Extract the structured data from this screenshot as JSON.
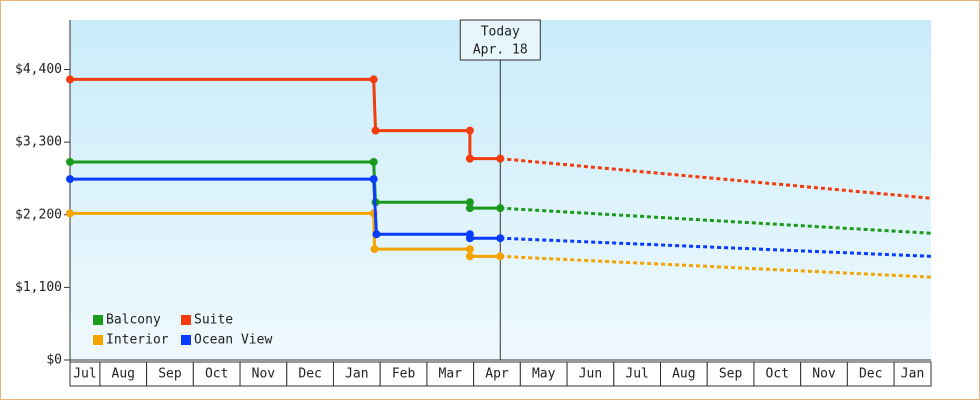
{
  "chart_data": {
    "type": "step-line",
    "xlim": [
      0.36,
      18.79
    ],
    "ylim": [
      0,
      5150
    ],
    "yticks": [
      {
        "value": 0,
        "label": "$0"
      },
      {
        "value": 1100,
        "label": "$1,100"
      },
      {
        "value": 2200,
        "label": "$2,200"
      },
      {
        "value": 3300,
        "label": "$3,300"
      },
      {
        "value": 4400,
        "label": "$4,400"
      }
    ],
    "xticks": [
      {
        "value": 0.5,
        "label": "Jul"
      },
      {
        "value": 1.5,
        "label": "Aug"
      },
      {
        "value": 2.5,
        "label": "Sep"
      },
      {
        "value": 3.5,
        "label": "Oct"
      },
      {
        "value": 4.5,
        "label": "Nov"
      },
      {
        "value": 5.5,
        "label": "Dec"
      },
      {
        "value": 6.5,
        "label": "Jan"
      },
      {
        "value": 7.5,
        "label": "Feb"
      },
      {
        "value": 8.5,
        "label": "Mar"
      },
      {
        "value": 9.5,
        "label": "Apr"
      },
      {
        "value": 10.5,
        "label": "May"
      },
      {
        "value": 11.5,
        "label": "Jun"
      },
      {
        "value": 12.5,
        "label": "Jul"
      },
      {
        "value": 13.5,
        "label": "Aug"
      },
      {
        "value": 14.5,
        "label": "Sep"
      },
      {
        "value": 15.5,
        "label": "Oct"
      },
      {
        "value": 16.5,
        "label": "Nov"
      },
      {
        "value": 17.5,
        "label": "Dec"
      },
      {
        "value": 18.5,
        "label": "Jan"
      }
    ],
    "today": {
      "x": 9.57,
      "lines": [
        "Today",
        "Apr. 18"
      ]
    },
    "series": [
      {
        "name": "Balcony",
        "color": "#1a9a1a",
        "x": [
          0.36,
          6.86,
          6.9,
          8.92,
          8.92,
          9.57
        ],
        "values": [
          3000,
          3000,
          2390,
          2390,
          2300,
          2300
        ],
        "projection_x": [
          9.57,
          18.79
        ],
        "projection_values": [
          2300,
          1920
        ]
      },
      {
        "name": "Suite",
        "color": "#f23c0c",
        "x": [
          0.36,
          6.86,
          6.9,
          8.92,
          8.92,
          9.57
        ],
        "values": [
          4250,
          4250,
          3475,
          3475,
          3050,
          3050
        ],
        "projection_x": [
          9.57,
          18.79
        ],
        "projection_values": [
          3050,
          2450
        ]
      },
      {
        "name": "Interior",
        "color": "#f5a300",
        "x": [
          0.36,
          6.86,
          6.88,
          8.92,
          8.92,
          9.57
        ],
        "values": [
          2220,
          2220,
          1680,
          1680,
          1570,
          1570
        ],
        "projection_x": [
          9.57,
          18.79
        ],
        "projection_values": [
          1570,
          1255
        ]
      },
      {
        "name": "Ocean View",
        "color": "#0a3cff",
        "x": [
          0.36,
          6.86,
          6.92,
          8.92,
          8.92,
          9.57
        ],
        "values": [
          2740,
          2740,
          1905,
          1905,
          1845,
          1845
        ],
        "projection_x": [
          9.57,
          18.79
        ],
        "projection_values": [
          1845,
          1570
        ]
      }
    ]
  }
}
